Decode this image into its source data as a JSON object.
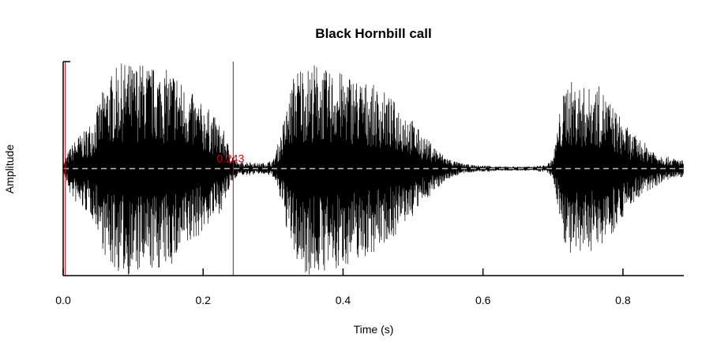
{
  "chart_data": {
    "type": "line",
    "title": "Black Hornbill call",
    "xlabel": "Time (s)",
    "ylabel": "Amplitude",
    "xlim": [
      0,
      0.887
    ],
    "ylim": [
      -1,
      1
    ],
    "x_ticks": [
      0.0,
      0.2,
      0.4,
      0.6,
      0.8
    ],
    "x_tick_labels": [
      "0.0",
      "0.2",
      "0.4",
      "0.6",
      "0.8"
    ],
    "grid": false,
    "zero_line": {
      "y": 0,
      "style": "dashed",
      "color": "#bbbbbb"
    },
    "markers": [
      {
        "x": 0.003,
        "label": "",
        "color": "#dd0000"
      },
      {
        "x": 0.243,
        "label": "0.243",
        "color": "#dd0000"
      }
    ],
    "envelope": {
      "x": [
        0.0,
        0.01,
        0.02,
        0.03,
        0.04,
        0.05,
        0.06,
        0.07,
        0.08,
        0.09,
        0.1,
        0.11,
        0.12,
        0.13,
        0.14,
        0.15,
        0.16,
        0.17,
        0.18,
        0.19,
        0.2,
        0.21,
        0.22,
        0.23,
        0.24,
        0.25,
        0.26,
        0.27,
        0.28,
        0.29,
        0.3,
        0.31,
        0.32,
        0.33,
        0.34,
        0.35,
        0.36,
        0.37,
        0.38,
        0.39,
        0.4,
        0.41,
        0.42,
        0.43,
        0.44,
        0.45,
        0.46,
        0.47,
        0.48,
        0.49,
        0.5,
        0.51,
        0.52,
        0.53,
        0.54,
        0.55,
        0.56,
        0.57,
        0.58,
        0.59,
        0.6,
        0.61,
        0.62,
        0.63,
        0.64,
        0.65,
        0.66,
        0.67,
        0.68,
        0.69,
        0.7,
        0.71,
        0.72,
        0.73,
        0.74,
        0.75,
        0.76,
        0.77,
        0.78,
        0.79,
        0.8,
        0.81,
        0.82,
        0.83,
        0.84,
        0.85,
        0.86,
        0.87,
        0.887
      ],
      "max": [
        0.05,
        0.2,
        0.3,
        0.35,
        0.45,
        0.6,
        0.8,
        0.9,
        0.98,
        1.0,
        0.98,
        1.0,
        0.98,
        0.95,
        0.95,
        0.92,
        0.95,
        0.8,
        0.75,
        0.65,
        0.6,
        0.55,
        0.45,
        0.35,
        0.15,
        0.05,
        0.07,
        0.06,
        0.05,
        0.06,
        0.08,
        0.3,
        0.6,
        0.9,
        1.0,
        0.95,
        1.0,
        0.95,
        0.9,
        0.95,
        0.88,
        0.9,
        0.85,
        0.82,
        0.8,
        0.75,
        0.72,
        0.65,
        0.6,
        0.55,
        0.45,
        0.35,
        0.28,
        0.22,
        0.15,
        0.1,
        0.07,
        0.05,
        0.04,
        0.03,
        0.03,
        0.03,
        0.02,
        0.02,
        0.02,
        0.02,
        0.02,
        0.02,
        0.03,
        0.03,
        0.1,
        0.55,
        0.85,
        0.8,
        0.78,
        0.75,
        0.8,
        0.75,
        0.65,
        0.55,
        0.45,
        0.35,
        0.3,
        0.25,
        0.2,
        0.15,
        0.12,
        0.1,
        0.08
      ],
      "min": [
        -0.05,
        -0.25,
        -0.35,
        -0.4,
        -0.45,
        -0.6,
        -0.85,
        -0.95,
        -0.98,
        -1.0,
        -1.0,
        -1.0,
        -0.98,
        -0.95,
        -0.95,
        -0.92,
        -0.9,
        -0.8,
        -0.75,
        -0.65,
        -0.6,
        -0.5,
        -0.45,
        -0.35,
        -0.15,
        -0.05,
        -0.07,
        -0.06,
        -0.05,
        -0.06,
        -0.08,
        -0.3,
        -0.6,
        -0.85,
        -0.95,
        -1.0,
        -1.0,
        -0.98,
        -0.95,
        -1.0,
        -0.9,
        -0.9,
        -0.85,
        -0.85,
        -0.8,
        -0.75,
        -0.7,
        -0.65,
        -0.6,
        -0.5,
        -0.45,
        -0.35,
        -0.28,
        -0.22,
        -0.15,
        -0.1,
        -0.07,
        -0.05,
        -0.04,
        -0.03,
        -0.03,
        -0.03,
        -0.02,
        -0.02,
        -0.02,
        -0.02,
        -0.02,
        -0.02,
        -0.03,
        -0.03,
        -0.1,
        -0.5,
        -0.8,
        -0.9,
        -0.85,
        -0.75,
        -0.8,
        -0.7,
        -0.65,
        -0.55,
        -0.45,
        -0.35,
        -0.3,
        -0.25,
        -0.2,
        -0.15,
        -0.12,
        -0.1,
        -0.08
      ]
    }
  }
}
